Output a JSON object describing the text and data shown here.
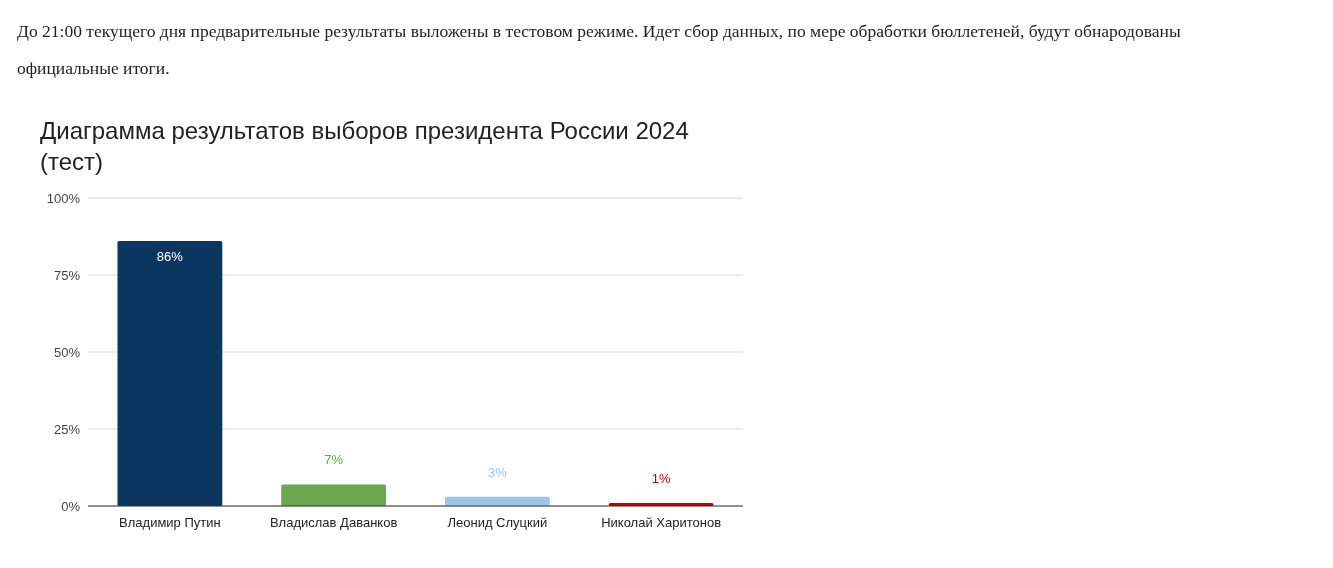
{
  "chart_data": {
    "type": "bar",
    "title": "Диаграмма результатов выборов президента России 2024 (тест)",
    "annotations": [
      "До 21:00 текущего дня предварительные результаты выложены в тестовом режиме. Идет сбор данных, по мере обработки бюллетеней, будут обнародованы официальные итоги."
    ],
    "categories": [
      "Владимир Путин",
      "Владислав Даванков",
      "Леонид Слуцкий",
      "Николай Харитонов"
    ],
    "values": [
      86,
      7,
      3,
      1
    ],
    "colors": [
      "#0b365f",
      "#6aa84f",
      "#9fc5e8",
      "#c00000"
    ],
    "ylim": [
      0,
      100
    ],
    "yticks": [
      {
        "value": 0,
        "label": "0%"
      },
      {
        "value": 25,
        "label": "25%"
      },
      {
        "value": 50,
        "label": "50%"
      },
      {
        "value": 75,
        "label": "75%"
      },
      {
        "value": 100,
        "label": "100%"
      }
    ],
    "value_labels": [
      "86%",
      "7%",
      "3%",
      "1%"
    ],
    "grid": "y"
  }
}
